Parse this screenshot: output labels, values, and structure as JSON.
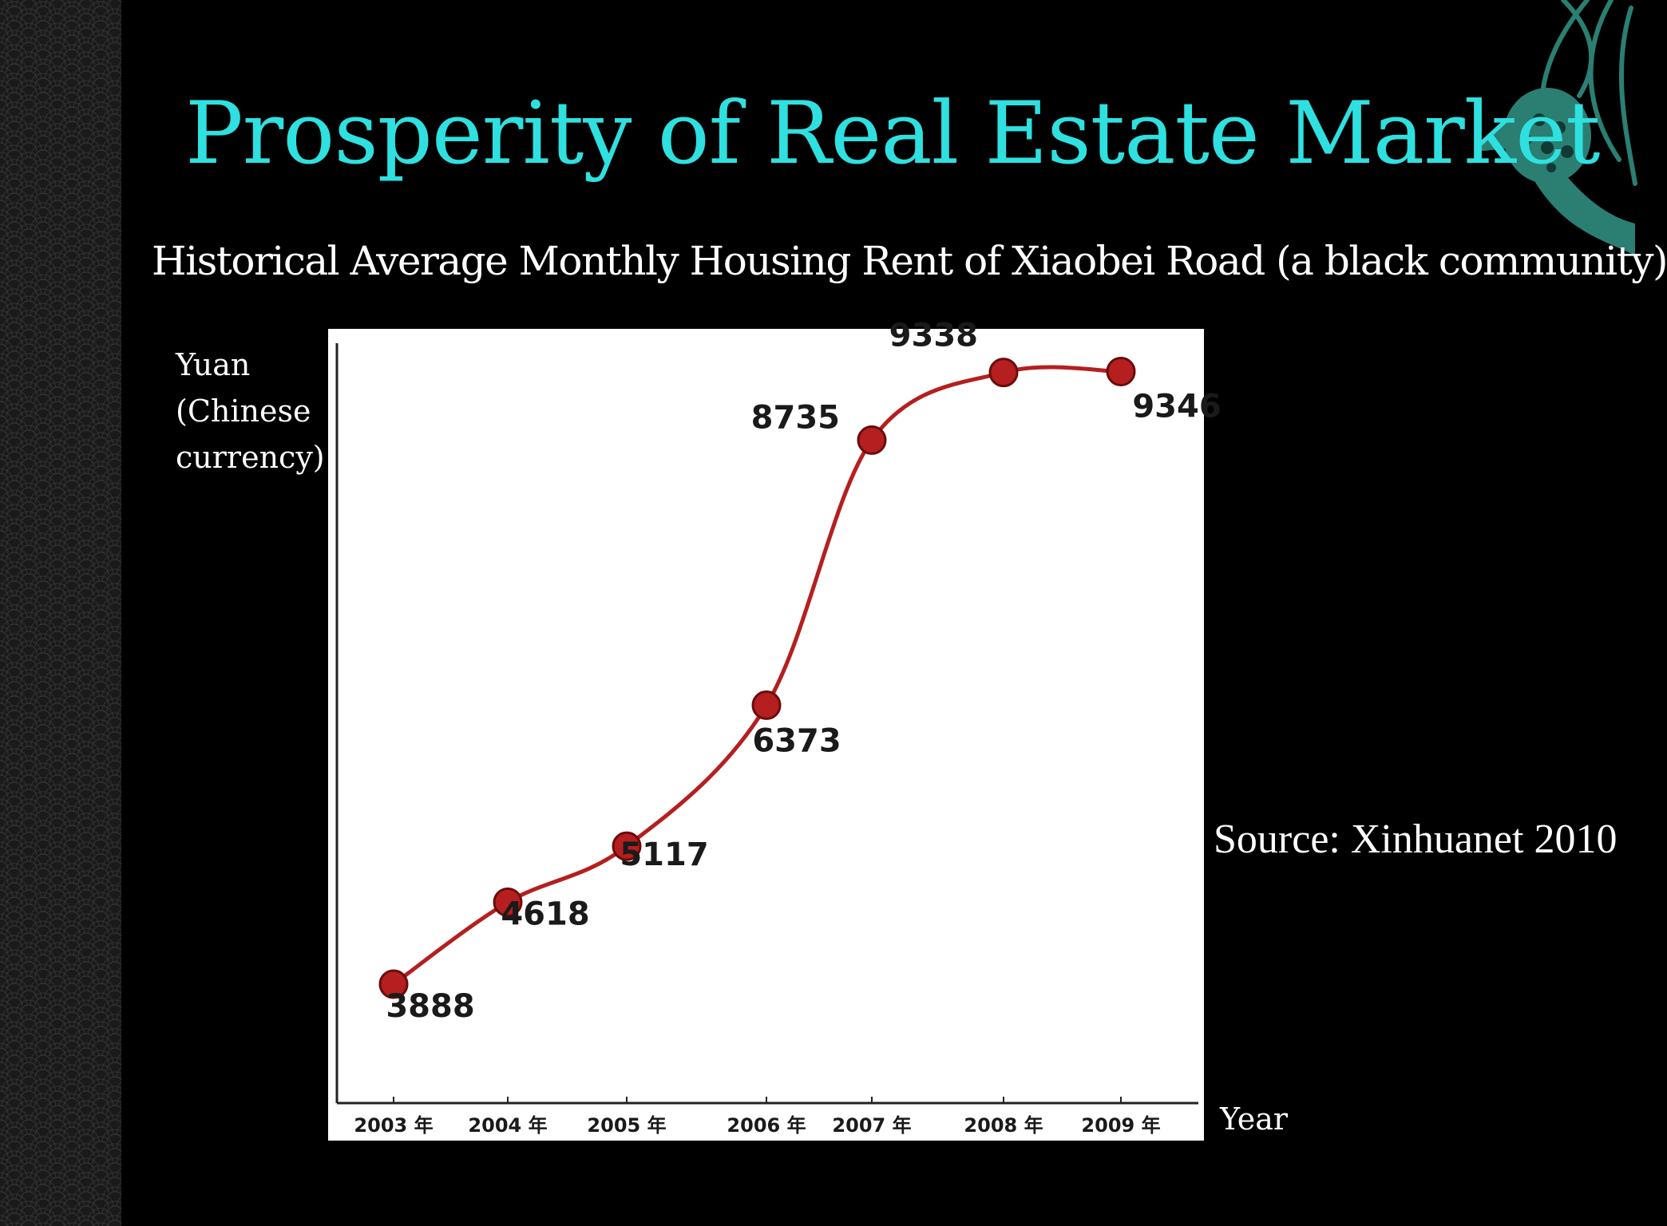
{
  "slide": {
    "title": "Prosperity of Real Estate Market",
    "subtitle": "Historical Average Monthly Housing Rent of Xiaobei Road (a black community)",
    "ylabel_lines": [
      "Yuan",
      "(Chinese",
      "currency)"
    ],
    "source": "Source: Xinhuanet 2010",
    "xlabel": "Year",
    "accent_color": "#2fe0e0"
  },
  "chart_data": {
    "type": "line",
    "categories": [
      "2003 年",
      "2004 年",
      "2005 年",
      "2006 年",
      "2007 年",
      "2008 年",
      "2009 年"
    ],
    "series": [
      {
        "values": [
          3888,
          4618,
          5117,
          6373,
          8735,
          9338,
          9346
        ],
        "color": "#b51f1f"
      }
    ],
    "data_labels": [
      "3888",
      "4618",
      "5117",
      "6373",
      "8735",
      "9338",
      "9346"
    ],
    "xlabel": "Year",
    "ylabel": "Yuan (Chinese currency)",
    "grid": false,
    "smooth": true
  }
}
